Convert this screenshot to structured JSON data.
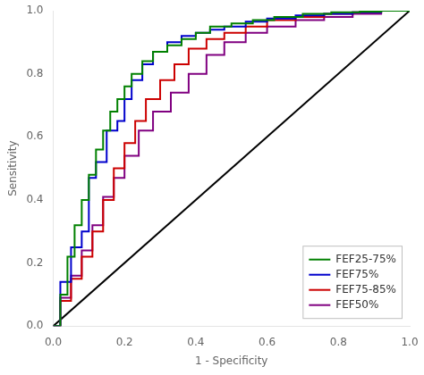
{
  "chart_data": {
    "type": "line",
    "xlabel": "1 - Specificity",
    "ylabel": "Sensitivity",
    "xlim": [
      0,
      1
    ],
    "ylim": [
      0,
      1
    ],
    "xticks": [
      {
        "value": 0,
        "label": "0.0"
      },
      0.2,
      0.4,
      0.6,
      0.8,
      {
        "value": 1,
        "label": "1.0"
      }
    ],
    "yticks": [
      {
        "value": 0,
        "label": "0.0"
      },
      0.2,
      0.4,
      0.6,
      0.8,
      {
        "value": 1,
        "label": "1.0"
      }
    ],
    "grid": false,
    "legend": "lower right",
    "series": [
      {
        "name": "FEF25-75%",
        "color": "#008000",
        "x": [
          0.0,
          0.02,
          0.02,
          0.04,
          0.04,
          0.06,
          0.06,
          0.08,
          0.08,
          0.1,
          0.1,
          0.12,
          0.12,
          0.14,
          0.14,
          0.16,
          0.16,
          0.18,
          0.18,
          0.2,
          0.2,
          0.22,
          0.22,
          0.25,
          0.25,
          0.28,
          0.28,
          0.32,
          0.32,
          0.36,
          0.36,
          0.4,
          0.4,
          0.44,
          0.44,
          0.5,
          0.5,
          0.56,
          0.56,
          0.62,
          0.62,
          0.7,
          0.7,
          0.78,
          0.78,
          0.86,
          0.86,
          0.92,
          0.92,
          1.0
        ],
        "values": [
          0.0,
          0.0,
          0.1,
          0.1,
          0.22,
          0.22,
          0.32,
          0.32,
          0.4,
          0.4,
          0.48,
          0.48,
          0.56,
          0.56,
          0.62,
          0.62,
          0.68,
          0.68,
          0.72,
          0.72,
          0.76,
          0.76,
          0.8,
          0.8,
          0.84,
          0.84,
          0.87,
          0.87,
          0.89,
          0.89,
          0.91,
          0.91,
          0.93,
          0.93,
          0.95,
          0.95,
          0.96,
          0.96,
          0.97,
          0.97,
          0.98,
          0.98,
          0.99,
          0.99,
          0.995,
          0.995,
          0.997,
          0.997,
          1.0,
          1.0
        ]
      },
      {
        "name": "FEF75%",
        "color": "#0000CC",
        "x": [
          0.0,
          0.02,
          0.02,
          0.05,
          0.05,
          0.08,
          0.08,
          0.1,
          0.1,
          0.12,
          0.12,
          0.15,
          0.15,
          0.18,
          0.18,
          0.2,
          0.2,
          0.22,
          0.22,
          0.25,
          0.25,
          0.28,
          0.28,
          0.32,
          0.32,
          0.36,
          0.36,
          0.4,
          0.4,
          0.44,
          0.44,
          0.48,
          0.48,
          0.54,
          0.54,
          0.6,
          0.6,
          0.68,
          0.68,
          0.76,
          0.76,
          0.84,
          0.84,
          0.92,
          0.92,
          1.0
        ],
        "values": [
          0.0,
          0.0,
          0.14,
          0.14,
          0.25,
          0.25,
          0.3,
          0.3,
          0.47,
          0.47,
          0.52,
          0.52,
          0.62,
          0.62,
          0.65,
          0.65,
          0.72,
          0.72,
          0.78,
          0.78,
          0.83,
          0.83,
          0.87,
          0.87,
          0.9,
          0.9,
          0.92,
          0.92,
          0.93,
          0.93,
          0.94,
          0.94,
          0.95,
          0.95,
          0.965,
          0.965,
          0.975,
          0.975,
          0.985,
          0.985,
          0.99,
          0.99,
          0.995,
          0.995,
          1.0,
          1.0
        ]
      },
      {
        "name": "FEF75-85%",
        "color": "#CC0000",
        "x": [
          0.0,
          0.02,
          0.02,
          0.05,
          0.05,
          0.08,
          0.08,
          0.11,
          0.11,
          0.14,
          0.14,
          0.17,
          0.17,
          0.2,
          0.2,
          0.23,
          0.23,
          0.26,
          0.26,
          0.3,
          0.3,
          0.34,
          0.34,
          0.38,
          0.38,
          0.43,
          0.43,
          0.48,
          0.48,
          0.54,
          0.54,
          0.6,
          0.6,
          0.68,
          0.68,
          0.76,
          0.76,
          0.84,
          0.84,
          0.92,
          0.92,
          1.0
        ],
        "values": [
          0.0,
          0.0,
          0.08,
          0.08,
          0.15,
          0.15,
          0.22,
          0.22,
          0.3,
          0.3,
          0.4,
          0.4,
          0.5,
          0.5,
          0.58,
          0.58,
          0.65,
          0.65,
          0.72,
          0.72,
          0.78,
          0.78,
          0.83,
          0.83,
          0.88,
          0.88,
          0.91,
          0.91,
          0.93,
          0.93,
          0.95,
          0.95,
          0.97,
          0.97,
          0.98,
          0.98,
          0.99,
          0.99,
          0.995,
          0.995,
          1.0,
          1.0
        ]
      },
      {
        "name": "FEF50%",
        "color": "#800080",
        "x": [
          0.0,
          0.02,
          0.02,
          0.05,
          0.05,
          0.08,
          0.08,
          0.11,
          0.11,
          0.14,
          0.14,
          0.17,
          0.17,
          0.2,
          0.2,
          0.24,
          0.24,
          0.28,
          0.28,
          0.33,
          0.33,
          0.38,
          0.38,
          0.43,
          0.43,
          0.48,
          0.48,
          0.54,
          0.54,
          0.6,
          0.6,
          0.68,
          0.68,
          0.76,
          0.76,
          0.84,
          0.84,
          0.92,
          0.92,
          1.0
        ],
        "values": [
          0.0,
          0.0,
          0.09,
          0.09,
          0.16,
          0.16,
          0.24,
          0.24,
          0.32,
          0.32,
          0.41,
          0.41,
          0.47,
          0.47,
          0.54,
          0.54,
          0.62,
          0.62,
          0.68,
          0.68,
          0.74,
          0.74,
          0.8,
          0.8,
          0.86,
          0.86,
          0.9,
          0.9,
          0.93,
          0.93,
          0.95,
          0.95,
          0.97,
          0.97,
          0.98,
          0.98,
          0.99,
          0.99,
          1.0,
          1.0
        ]
      },
      {
        "color": "#000000",
        "x": [
          0,
          1
        ],
        "values": [
          0,
          1
        ]
      }
    ]
  }
}
